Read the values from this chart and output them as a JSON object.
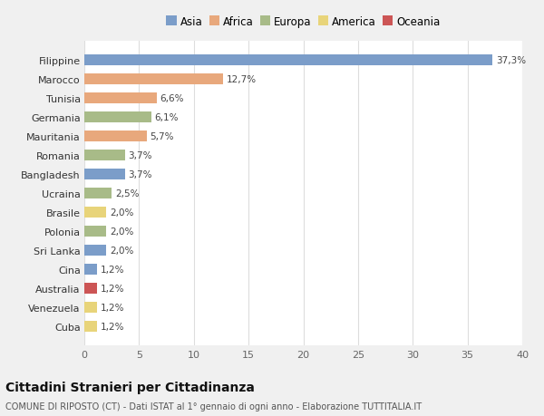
{
  "countries": [
    "Filippine",
    "Marocco",
    "Tunisia",
    "Germania",
    "Mauritania",
    "Romania",
    "Bangladesh",
    "Ucraina",
    "Brasile",
    "Polonia",
    "Sri Lanka",
    "Cina",
    "Australia",
    "Venezuela",
    "Cuba"
  ],
  "values": [
    37.3,
    12.7,
    6.6,
    6.1,
    5.7,
    3.7,
    3.7,
    2.5,
    2.0,
    2.0,
    2.0,
    1.2,
    1.2,
    1.2,
    1.2
  ],
  "labels": [
    "37,3%",
    "12,7%",
    "6,6%",
    "6,1%",
    "5,7%",
    "3,7%",
    "3,7%",
    "2,5%",
    "2,0%",
    "2,0%",
    "2,0%",
    "1,2%",
    "1,2%",
    "1,2%",
    "1,2%"
  ],
  "continents": [
    "Asia",
    "Africa",
    "Africa",
    "Europa",
    "Africa",
    "Europa",
    "Asia",
    "Europa",
    "America",
    "Europa",
    "Asia",
    "Asia",
    "Oceania",
    "America",
    "America"
  ],
  "continent_colors": {
    "Asia": "#7b9dc9",
    "Africa": "#e8a87c",
    "Europa": "#a8bb88",
    "America": "#e8d47a",
    "Oceania": "#cc5555"
  },
  "legend_order": [
    "Asia",
    "Africa",
    "Europa",
    "America",
    "Oceania"
  ],
  "title": "Cittadini Stranieri per Cittadinanza",
  "subtitle": "COMUNE DI RIPOSTO (CT) - Dati ISTAT al 1° gennaio di ogni anno - Elaborazione TUTTITALIA.IT",
  "xlim": [
    0,
    40
  ],
  "xticks": [
    0,
    5,
    10,
    15,
    20,
    25,
    30,
    35,
    40
  ],
  "background_color": "#f0f0f0",
  "plot_bg_color": "#ffffff"
}
